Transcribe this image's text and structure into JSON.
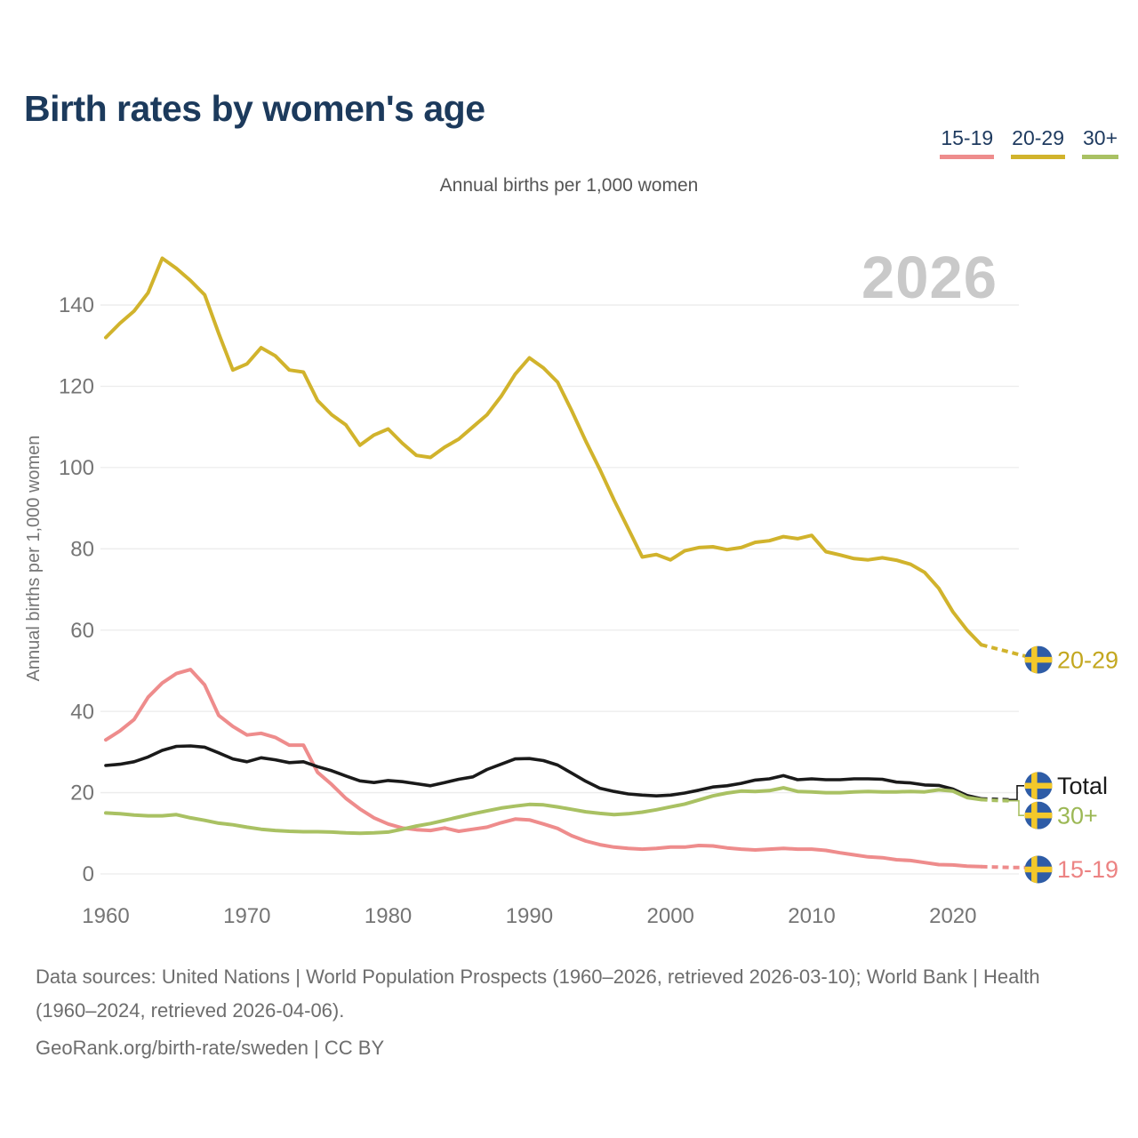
{
  "header": {
    "title": "Birth rates by women's age"
  },
  "legend": {
    "items": [
      {
        "label": "15-19",
        "color": "#ee8c8c"
      },
      {
        "label": "20-29",
        "color": "#d1b32c"
      },
      {
        "label": "30+",
        "color": "#a9c163"
      }
    ]
  },
  "chart": {
    "subtitle": "Annual births per 1,000 women",
    "watermark": "2026"
  },
  "chart_data": {
    "type": "line",
    "title": "Birth rates by women's age",
    "subtitle": "Annual births per 1,000 women",
    "ylabel": "Annual births per 1,000 women",
    "x_range": [
      1960,
      2026
    ],
    "ylim": [
      0,
      155
    ],
    "y_ticks": [
      0,
      20,
      40,
      60,
      80,
      100,
      120,
      140
    ],
    "x_ticks": [
      1960,
      1970,
      1980,
      1990,
      2000,
      2010,
      2020
    ],
    "grid": "horizontal",
    "projection_from_year": 2022,
    "watermark": "2026",
    "flag": "sweden",
    "flag_colors": {
      "blue": "#2e5ca6",
      "yellow": "#f3c82a"
    },
    "series": [
      {
        "name": "20-29",
        "color": "#d1b32c",
        "label_color": "#c3a71f",
        "flag_value": 52.7,
        "bracket": null,
        "values": [
          132,
          135.5,
          138.5,
          143,
          151.5,
          149,
          146,
          142.5,
          133,
          124,
          125.5,
          129.5,
          127.5,
          124,
          123.5,
          116.5,
          113,
          110.5,
          105.5,
          108,
          109.5,
          106,
          103,
          102.5,
          105,
          107,
          110,
          113,
          117.5,
          123,
          127,
          124.5,
          121,
          114,
          106.5,
          99.5,
          92,
          85,
          78,
          78.6,
          77.3,
          79.5,
          80.3,
          80.5,
          79.8,
          80.3,
          81.6,
          82,
          83,
          82.5,
          83.3,
          79.3,
          78.5,
          77.6,
          77.3,
          77.8,
          77.2,
          76.2,
          74.2,
          70.3,
          64.5,
          60,
          56.4,
          55.5,
          54.6,
          53.7,
          53
        ]
      },
      {
        "name": "15-19",
        "color": "#ee8c8c",
        "label_color": "#ec8383",
        "flag_value": 1.1,
        "bracket": null,
        "values": [
          33,
          35.2,
          38,
          43.5,
          47,
          49.3,
          50.3,
          46.5,
          39,
          36.3,
          34.2,
          34.6,
          33.6,
          31.7,
          31.7,
          25,
          22,
          18.6,
          16,
          13.8,
          12.3,
          11.3,
          10.9,
          10.7,
          11.3,
          10.5,
          11,
          11.5,
          12.6,
          13.5,
          13.3,
          12.3,
          11.2,
          9.4,
          8.1,
          7.2,
          6.6,
          6.3,
          6.1,
          6.3,
          6.6,
          6.6,
          7,
          6.9,
          6.4,
          6.1,
          5.9,
          6.1,
          6.3,
          6.1,
          6.1,
          5.8,
          5.2,
          4.7,
          4.2,
          4,
          3.5,
          3.3,
          2.8,
          2.3,
          2.2,
          1.9,
          1.8,
          1.7,
          1.6,
          1.6,
          1.5
        ]
      },
      {
        "name": "Total",
        "color": "#1a1a1a",
        "label_color": "#1a1a1a",
        "flag_value": 21.7,
        "bracket": "up",
        "values": [
          26.7,
          27,
          27.6,
          28.8,
          30.4,
          31.4,
          31.5,
          31.2,
          29.8,
          28.3,
          27.6,
          28.6,
          28.1,
          27.4,
          27.6,
          26.4,
          25.4,
          24.1,
          22.9,
          22.5,
          23,
          22.7,
          22.2,
          21.7,
          22.5,
          23.3,
          23.9,
          25.7,
          27,
          28.3,
          28.4,
          27.9,
          26.8,
          24.8,
          22.8,
          21.1,
          20.3,
          19.7,
          19.4,
          19.2,
          19.4,
          19.9,
          20.6,
          21.4,
          21.7,
          22.3,
          23.1,
          23.4,
          24.2,
          23.2,
          23.4,
          23.2,
          23.2,
          23.4,
          23.4,
          23.3,
          22.6,
          22.4,
          21.9,
          21.8,
          20.9,
          19.3,
          18.5,
          18.4,
          18.3,
          18.3,
          18.3
        ]
      },
      {
        "name": "30+",
        "color": "#a9c163",
        "label_color": "#9cb855",
        "flag_value": 14.4,
        "bracket": "down",
        "values": [
          15,
          14.8,
          14.5,
          14.3,
          14.3,
          14.6,
          13.8,
          13.2,
          12.5,
          12.1,
          11.5,
          11,
          10.7,
          10.5,
          10.4,
          10.4,
          10.3,
          10.1,
          10,
          10.1,
          10.3,
          11,
          11.8,
          12.4,
          13.2,
          14,
          14.8,
          15.5,
          16.2,
          16.7,
          17.1,
          17,
          16.5,
          15.9,
          15.3,
          14.9,
          14.6,
          14.8,
          15.2,
          15.8,
          16.5,
          17.2,
          18.2,
          19.2,
          19.9,
          20.4,
          20.3,
          20.5,
          21.2,
          20.3,
          20.2,
          20,
          20,
          20.2,
          20.3,
          20.2,
          20.2,
          20.3,
          20.2,
          20.7,
          20.4,
          18.8,
          18.3,
          18.1,
          18,
          18,
          18
        ]
      }
    ]
  },
  "footer": {
    "sources": "Data sources: United Nations | World Population Prospects (1960–2026, retrieved 2026-03-10); World Bank | Health (1960–2024, retrieved 2026-04-06).",
    "attribution": "GeoRank.org/birth-rate/sweden | CC BY"
  }
}
